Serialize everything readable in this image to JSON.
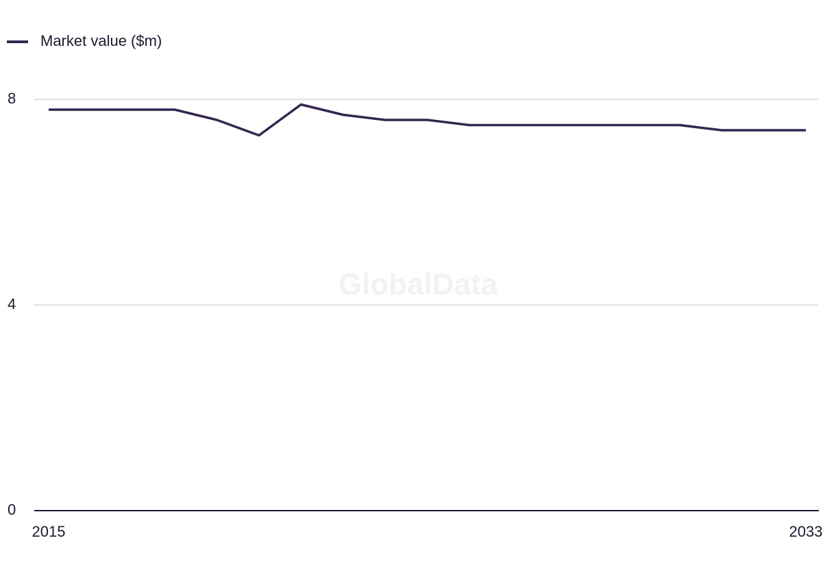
{
  "chart_data": {
    "type": "line",
    "watermark": "GlobalData",
    "x": [
      2015,
      2016,
      2017,
      2018,
      2019,
      2020,
      2021,
      2022,
      2023,
      2024,
      2025,
      2026,
      2027,
      2028,
      2029,
      2030,
      2031,
      2032,
      2033
    ],
    "series": [
      {
        "name": "Market value ($m)",
        "color": "#35264f",
        "values": [
          7.8,
          7.8,
          7.8,
          7.8,
          7.6,
          7.3,
          7.9,
          7.7,
          7.6,
          7.6,
          7.5,
          7.5,
          7.5,
          7.5,
          7.5,
          7.5,
          7.4,
          7.4,
          7.4
        ]
      }
    ],
    "xlim": [
      2015,
      2033
    ],
    "xticks": [
      2015,
      2033
    ],
    "ylim": [
      0,
      8
    ],
    "yticks": [
      0,
      4,
      8
    ],
    "grid": true
  }
}
